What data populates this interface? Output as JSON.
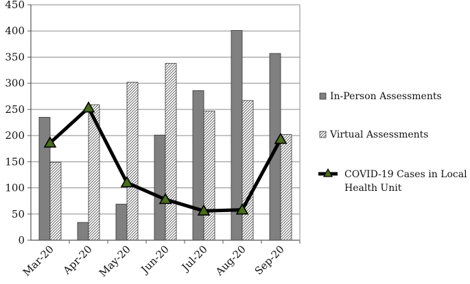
{
  "chart_data": {
    "type": "bar",
    "title": "",
    "xlabel": "",
    "ylabel": "",
    "ylim": [
      0,
      450
    ],
    "yticks": [
      "0",
      "50",
      "100",
      "150",
      "200",
      "250",
      "300",
      "350",
      "400",
      "450"
    ],
    "grid": true,
    "legend_position": "right",
    "categories": [
      "Mar-20",
      "Apr-20",
      "May-20",
      "Jun-20",
      "Jul-20",
      "Aug-20",
      "Sep-20"
    ],
    "series": [
      {
        "name": "In-Person Assessments",
        "kind": "bar",
        "fill": "solid",
        "color": "#808080",
        "values": [
          235,
          34,
          69,
          201,
          286,
          401,
          357
        ]
      },
      {
        "name": "Virtual Assessments",
        "kind": "bar",
        "fill": "hatched",
        "color": "#ffffff",
        "values": [
          149,
          259,
          302,
          338,
          247,
          267,
          202
        ]
      },
      {
        "name": "COVID-19 Cases in Local Health Unit",
        "kind": "line",
        "color": "#000000",
        "marker": "triangle",
        "marker_color": "#4a6e1c",
        "values": [
          186,
          253,
          110,
          78,
          56,
          58,
          193
        ]
      }
    ]
  }
}
